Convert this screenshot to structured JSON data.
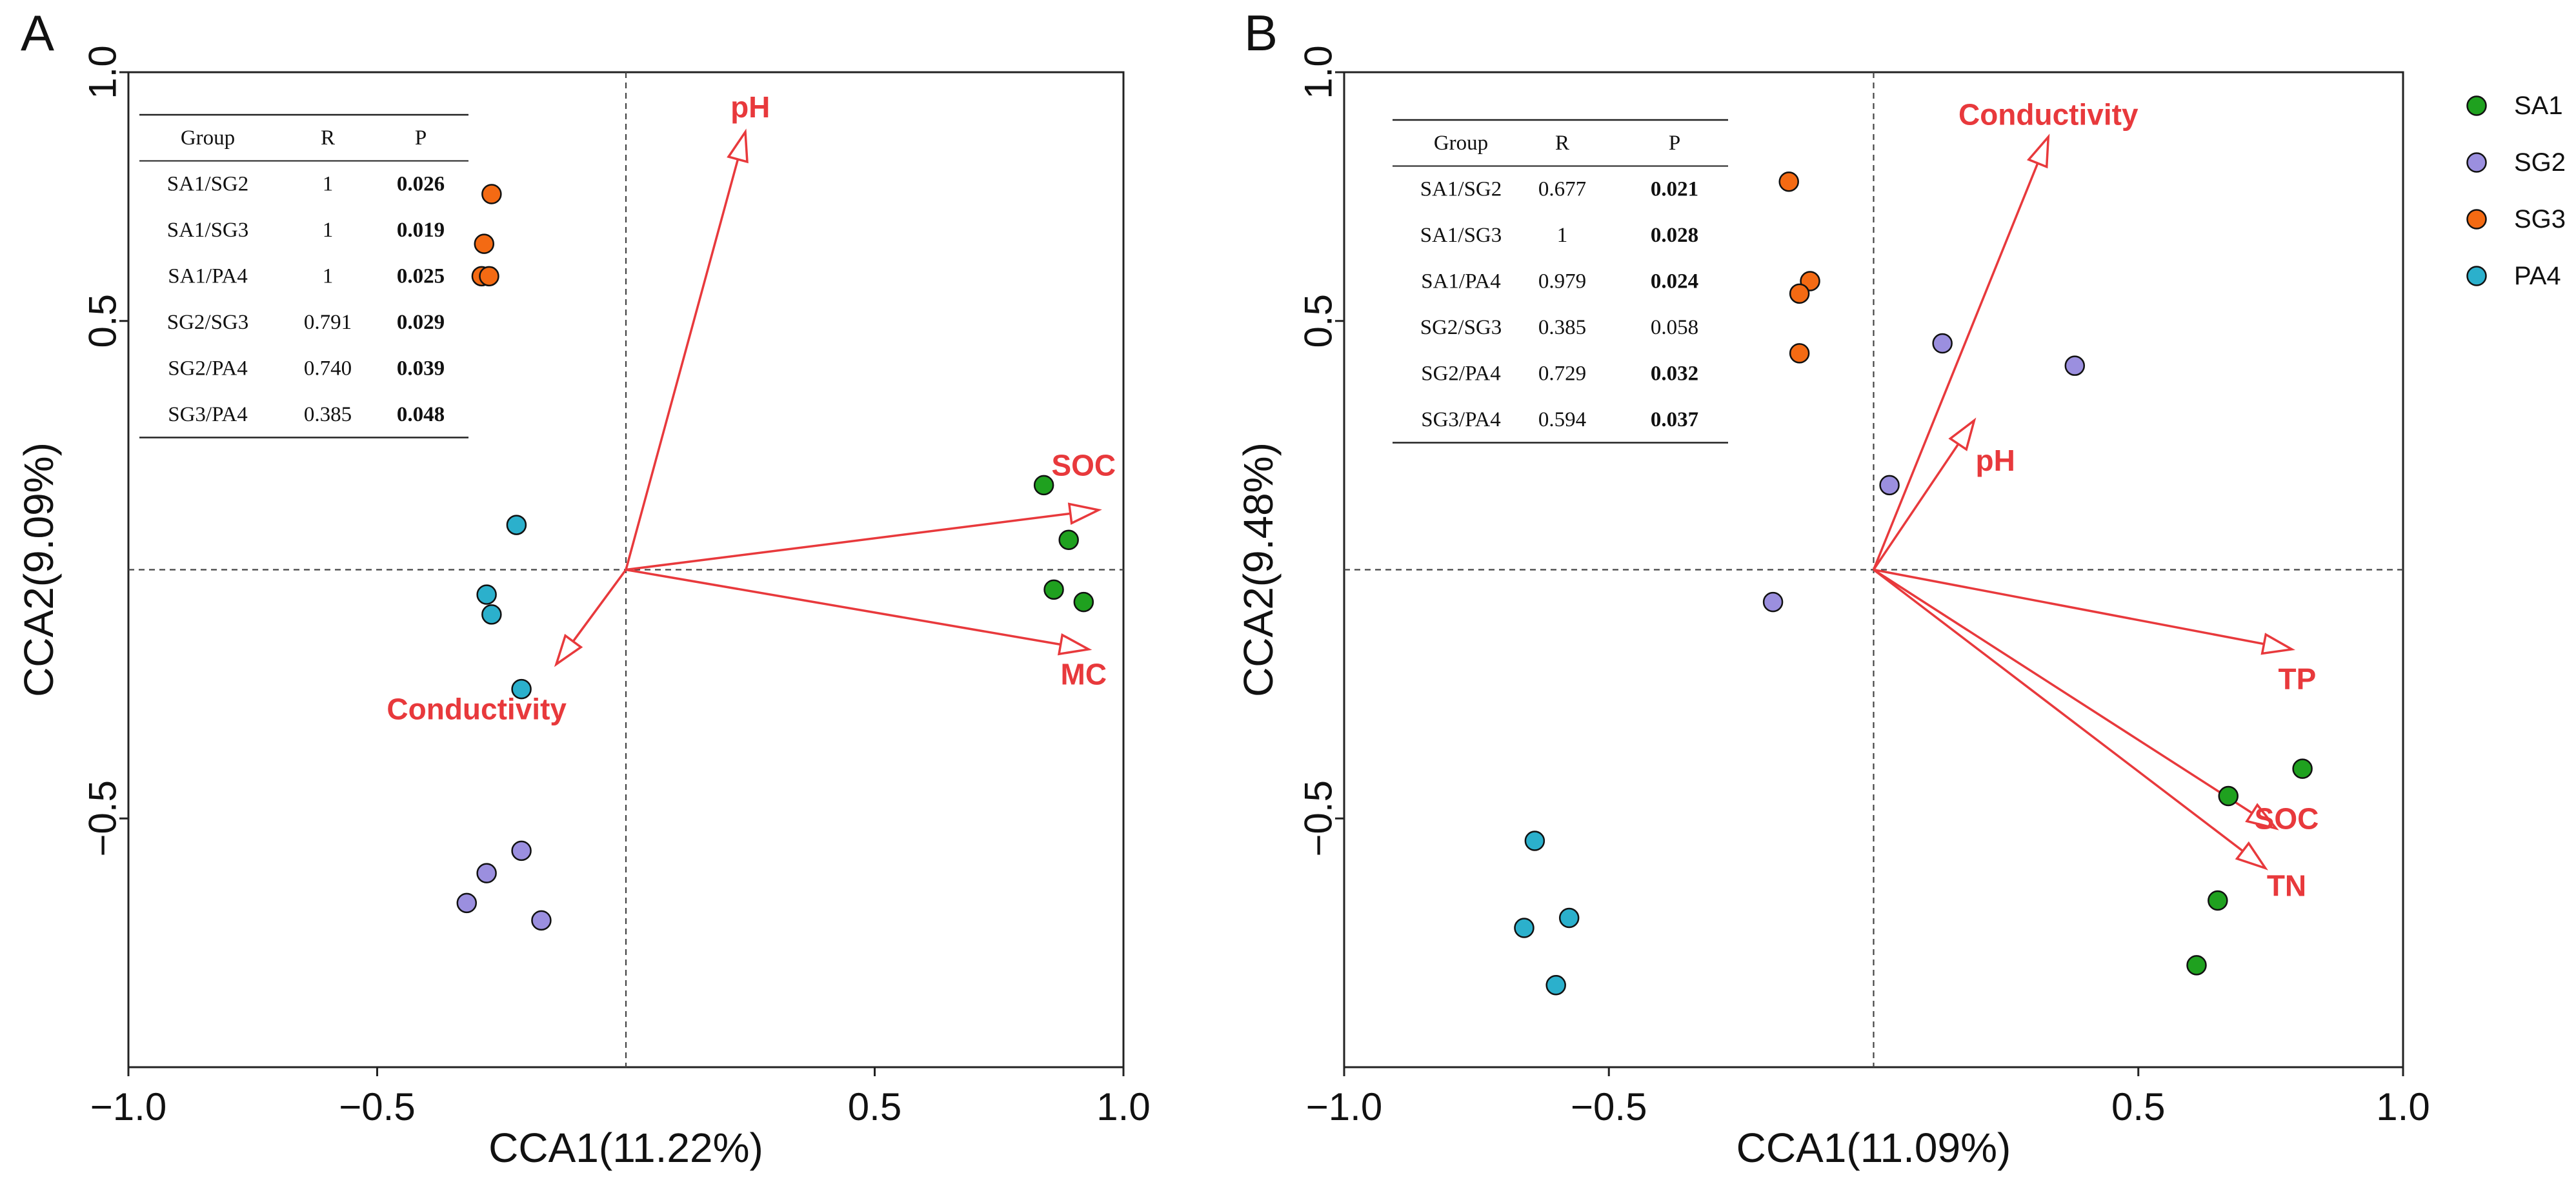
{
  "chart_data": [
    {
      "type": "scatter",
      "panel": "A",
      "xlabel": "CCA1(11.22%)",
      "ylabel": "CCA2(9.09%)",
      "xlim": [
        -1.0,
        1.0
      ],
      "ylim": [
        -1.0,
        1.0
      ],
      "xticks": [
        -1.0,
        -0.5,
        0.5,
        1.0
      ],
      "xtick_labels": [
        "−1.0",
        "−0.5",
        "0.5",
        "1.0"
      ],
      "yticks": [
        1.0,
        0.5,
        -0.5
      ],
      "ytick_labels": [
        "1.0",
        "0.5",
        "−0.5"
      ],
      "series": [
        {
          "name": "SA1",
          "color": "#1fa11f",
          "points": [
            [
              0.84,
              0.17
            ],
            [
              0.89,
              0.06
            ],
            [
              0.86,
              -0.04
            ],
            [
              0.92,
              -0.065
            ]
          ]
        },
        {
          "name": "SG2",
          "color": "#9b8fdf",
          "points": [
            [
              -0.21,
              -0.565
            ],
            [
              -0.28,
              -0.61
            ],
            [
              -0.32,
              -0.67
            ],
            [
              -0.17,
              -0.705
            ]
          ]
        },
        {
          "name": "SG3",
          "color": "#f46a13",
          "points": [
            [
              -0.27,
              0.755
            ],
            [
              -0.285,
              0.655
            ],
            [
              -0.29,
              0.59
            ],
            [
              -0.275,
              0.59
            ]
          ]
        },
        {
          "name": "PA4",
          "color": "#2bb0cc",
          "points": [
            [
              -0.22,
              0.09
            ],
            [
              -0.28,
              -0.05
            ],
            [
              -0.27,
              -0.09
            ],
            [
              -0.21,
              -0.24
            ]
          ]
        }
      ],
      "vectors": [
        {
          "name": "pH",
          "end": [
            0.24,
            0.88
          ],
          "label_at": [
            0.25,
            0.93
          ]
        },
        {
          "name": "SOC",
          "end": [
            0.95,
            0.12
          ],
          "label_at": [
            0.92,
            0.21
          ]
        },
        {
          "name": "MC",
          "end": [
            0.93,
            -0.16
          ],
          "label_at": [
            0.92,
            -0.21
          ]
        },
        {
          "name": "Conductivity",
          "end": [
            -0.14,
            -0.19
          ],
          "label_at": [
            -0.3,
            -0.28
          ]
        }
      ],
      "stats_table": {
        "headers": [
          "Group",
          "R",
          "P"
        ],
        "rows": [
          [
            "SA1/SG2",
            "1",
            "0.026"
          ],
          [
            "SA1/SG3",
            "1",
            "0.019"
          ],
          [
            "SA1/PA4",
            "1",
            "0.025"
          ],
          [
            "SG2/SG3",
            "0.791",
            "0.029"
          ],
          [
            "SG2/PA4",
            "0.740",
            "0.039"
          ],
          [
            "SG3/PA4",
            "0.385",
            "0.048"
          ]
        ]
      }
    },
    {
      "type": "scatter",
      "panel": "B",
      "xlabel": "CCA1(11.09%)",
      "ylabel": "CCA2(9.48%)",
      "xlim": [
        -1.0,
        1.0
      ],
      "ylim": [
        -1.0,
        1.0
      ],
      "xticks": [
        -1.0,
        -0.5,
        0.5,
        1.0
      ],
      "xtick_labels": [
        "−1.0",
        "−0.5",
        "0.5",
        "1.0"
      ],
      "yticks": [
        1.0,
        0.5,
        -0.5
      ],
      "ytick_labels": [
        "1.0",
        "0.5",
        "−0.5"
      ],
      "legend": [
        {
          "label": "SA1",
          "color": "#1fa11f"
        },
        {
          "label": "SG2",
          "color": "#9b8fdf"
        },
        {
          "label": "SG3",
          "color": "#f46a13"
        },
        {
          "label": "PA4",
          "color": "#2bb0cc"
        }
      ],
      "series": [
        {
          "name": "SA1",
          "color": "#1fa11f",
          "points": [
            [
              0.81,
              -0.4
            ],
            [
              0.67,
              -0.455
            ],
            [
              0.65,
              -0.665
            ],
            [
              0.61,
              -0.795
            ]
          ]
        },
        {
          "name": "SG2",
          "color": "#9b8fdf",
          "points": [
            [
              0.13,
              0.455
            ],
            [
              0.38,
              0.41
            ],
            [
              0.03,
              0.17
            ],
            [
              -0.19,
              -0.065
            ]
          ]
        },
        {
          "name": "SG3",
          "color": "#f46a13",
          "points": [
            [
              -0.16,
              0.78
            ],
            [
              -0.12,
              0.58
            ],
            [
              -0.14,
              0.555
            ],
            [
              -0.14,
              0.435
            ]
          ]
        },
        {
          "name": "PA4",
          "color": "#2bb0cc",
          "points": [
            [
              -0.64,
              -0.545
            ],
            [
              -0.66,
              -0.72
            ],
            [
              -0.575,
              -0.7
            ],
            [
              -0.6,
              -0.835
            ]
          ]
        }
      ],
      "vectors": [
        {
          "name": "Conductivity",
          "end": [
            0.33,
            0.87
          ],
          "label_at": [
            0.33,
            0.915
          ]
        },
        {
          "name": "pH",
          "end": [
            0.19,
            0.3
          ],
          "label_at": [
            0.23,
            0.22
          ]
        },
        {
          "name": "TP",
          "end": [
            0.79,
            -0.16
          ],
          "label_at": [
            0.8,
            -0.22
          ]
        },
        {
          "name": "SOC",
          "end": [
            0.76,
            -0.52
          ],
          "label_at": [
            0.78,
            -0.5
          ]
        },
        {
          "name": "TN",
          "end": [
            0.74,
            -0.6
          ],
          "label_at": [
            0.78,
            -0.635
          ]
        }
      ],
      "stats_table": {
        "headers": [
          "Group",
          "R",
          "P"
        ],
        "rows": [
          [
            "SA1/SG2",
            "0.677",
            "0.021"
          ],
          [
            "SA1/SG3",
            "1",
            "0.028"
          ],
          [
            "SA1/PA4",
            "0.979",
            "0.024"
          ],
          [
            "SG2/SG3",
            "0.385",
            "0.058"
          ],
          [
            "SG2/PA4",
            "0.729",
            "0.032"
          ],
          [
            "SG3/PA4",
            "0.594",
            "0.037"
          ]
        ],
        "bold_p": [
          true,
          true,
          true,
          false,
          true,
          true
        ]
      }
    }
  ],
  "arrow_color": "#e8393c"
}
